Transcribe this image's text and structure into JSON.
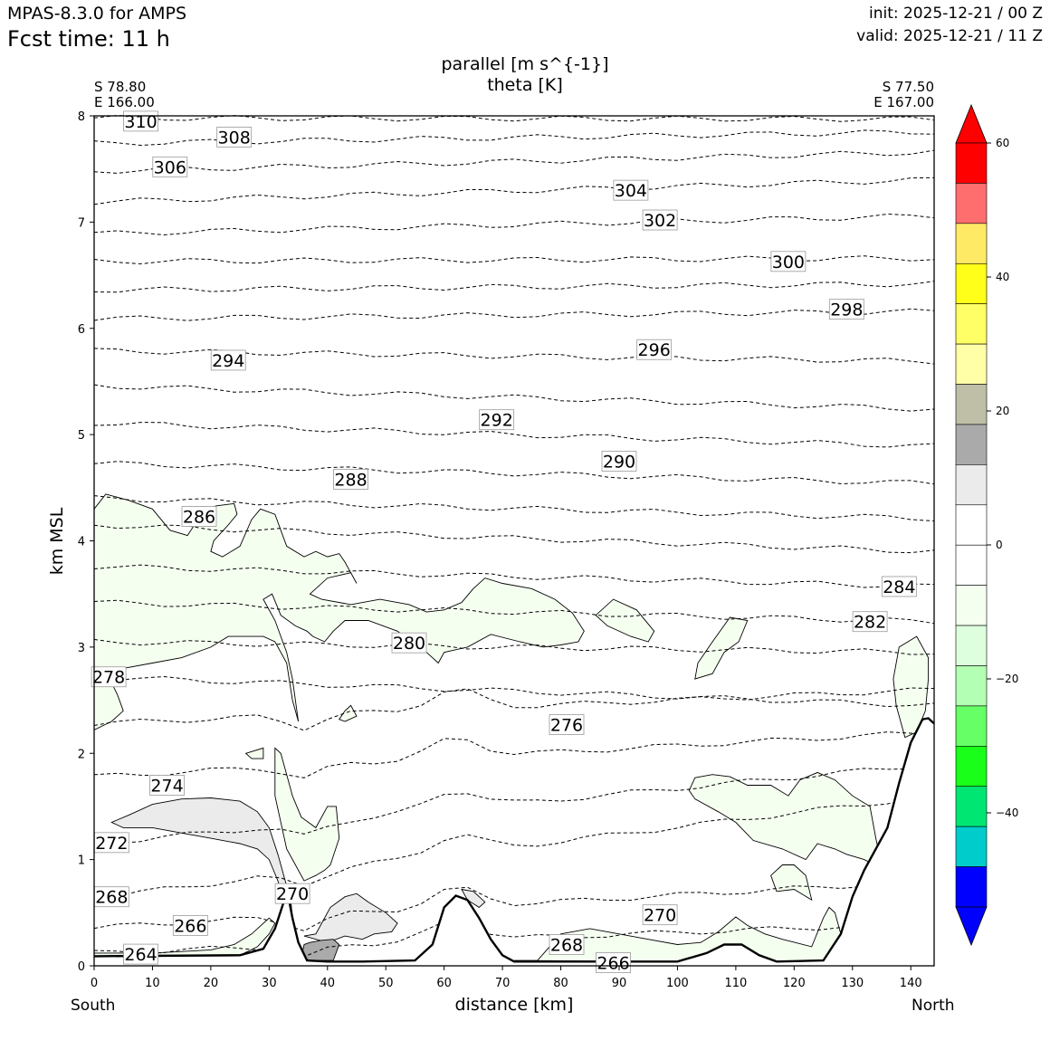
{
  "header": {
    "model": "MPAS-8.3.0 for AMPS",
    "fcst_label": "Fcst time:   11 h",
    "init": "init: 2025-12-21 / 00 Z",
    "valid": "valid: 2025-12-21 / 11 Z"
  },
  "chart_data": {
    "type": "area",
    "title_line1": "parallel [m s^{-1}]",
    "title_line2": "theta [K]",
    "xlabel": "distance [km]",
    "ylabel": "km MSL",
    "xlim": [
      0,
      144
    ],
    "ylim": [
      0,
      8
    ],
    "x_ticks": [
      "0",
      "10",
      "20",
      "30",
      "40",
      "50",
      "60",
      "70",
      "80",
      "90",
      "100",
      "110",
      "120",
      "130",
      "140"
    ],
    "y_ticks": [
      "0",
      "1",
      "2",
      "3",
      "4",
      "5",
      "6",
      "7",
      "8"
    ],
    "x_ends": {
      "left": "South",
      "right": "North"
    },
    "start_point": {
      "lat": "S 78.80",
      "lon": "E 166.00"
    },
    "end_point": {
      "lat": "S 77.50",
      "lon": "E 167.00"
    },
    "colorbar": {
      "range": [
        -50,
        60
      ],
      "ticks": [
        "60",
        "40",
        "20",
        "0",
        "−20",
        "−40"
      ],
      "colors": [
        "#0000ff",
        "#0000ff",
        "#00cccc",
        "#00e673",
        "#1aff1a",
        "#66ff66",
        "#b3ffb3",
        "#ddffdd",
        "#f5fff0",
        "#ffffff",
        "#ffffff",
        "#ebebeb",
        "#aaaaaa",
        "#bfbfa8",
        "#ffffa8",
        "#ffff66",
        "#ffff1a",
        "#ffea66",
        "#ff6e6e",
        "#ff0000",
        "#ff0000"
      ]
    },
    "theta_labels": [
      {
        "v": "310",
        "x": 8,
        "y": 7.95
      },
      {
        "v": "308",
        "x": 24,
        "y": 7.8
      },
      {
        "v": "306",
        "x": 13,
        "y": 7.52
      },
      {
        "v": "304",
        "x": 92,
        "y": 7.3
      },
      {
        "v": "302",
        "x": 97,
        "y": 7.02
      },
      {
        "v": "300",
        "x": 119,
        "y": 6.63
      },
      {
        "v": "298",
        "x": 129,
        "y": 6.18
      },
      {
        "v": "296",
        "x": 96,
        "y": 5.8
      },
      {
        "v": "294",
        "x": 23,
        "y": 5.7
      },
      {
        "v": "292",
        "x": 69,
        "y": 5.14
      },
      {
        "v": "290",
        "x": 90,
        "y": 4.75
      },
      {
        "v": "288",
        "x": 44,
        "y": 4.58
      },
      {
        "v": "286",
        "x": 18,
        "y": 4.23
      },
      {
        "v": "284",
        "x": 138,
        "y": 3.57
      },
      {
        "v": "282",
        "x": 133,
        "y": 3.24
      },
      {
        "v": "280",
        "x": 54,
        "y": 3.04
      },
      {
        "v": "278",
        "x": 2.5,
        "y": 2.72
      },
      {
        "v": "276",
        "x": 81,
        "y": 2.27
      },
      {
        "v": "274",
        "x": 12.5,
        "y": 1.7
      },
      {
        "v": "272",
        "x": 3,
        "y": 1.16
      },
      {
        "v": "270",
        "x": 34,
        "y": 0.68
      },
      {
        "v": "270",
        "x": 97,
        "y": 0.48
      },
      {
        "v": "268",
        "x": 3,
        "y": 0.65
      },
      {
        "v": "268",
        "x": 81,
        "y": 0.2
      },
      {
        "v": "266",
        "x": 16.5,
        "y": 0.38
      },
      {
        "v": "266",
        "x": 89,
        "y": 0.03
      },
      {
        "v": "264",
        "x": 8,
        "y": 0.11
      }
    ],
    "terrain": [
      [
        0,
        0.09
      ],
      [
        25,
        0.1
      ],
      [
        29,
        0.16
      ],
      [
        31,
        0.35
      ],
      [
        32.5,
        0.6
      ],
      [
        33.3,
        0.65
      ],
      [
        34,
        0.45
      ],
      [
        35,
        0.22
      ],
      [
        36.5,
        0.05
      ],
      [
        40,
        0.04
      ],
      [
        46,
        0.04
      ],
      [
        55,
        0.05
      ],
      [
        58,
        0.2
      ],
      [
        60,
        0.55
      ],
      [
        62,
        0.66
      ],
      [
        64,
        0.62
      ],
      [
        66,
        0.45
      ],
      [
        68,
        0.25
      ],
      [
        70,
        0.1
      ],
      [
        72,
        0.04
      ],
      [
        100,
        0.04
      ],
      [
        105,
        0.12
      ],
      [
        108,
        0.2
      ],
      [
        111,
        0.2
      ],
      [
        114,
        0.1
      ],
      [
        117,
        0.04
      ],
      [
        125,
        0.05
      ],
      [
        128,
        0.3
      ],
      [
        130,
        0.65
      ],
      [
        132,
        0.9
      ],
      [
        136,
        1.3
      ],
      [
        138,
        1.72
      ],
      [
        140,
        2.1
      ],
      [
        142,
        2.32
      ],
      [
        143,
        2.33
      ],
      [
        144,
        2.28
      ]
    ]
  }
}
